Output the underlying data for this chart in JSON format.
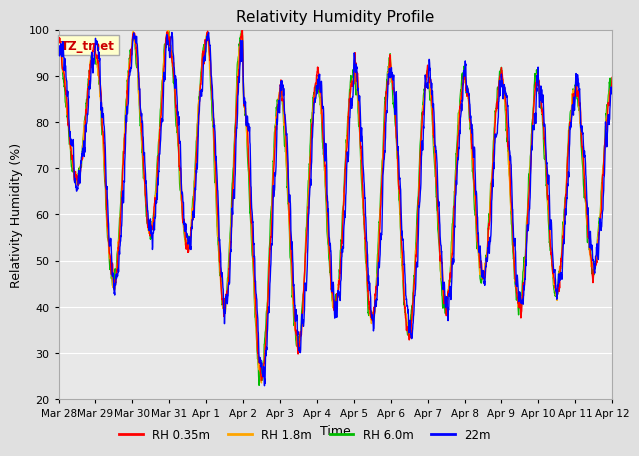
{
  "title": "Relativity Humidity Profile",
  "xlabel": "Time",
  "ylabel": "Relativity Humidity (%)",
  "ylim": [
    20,
    100
  ],
  "yticks": [
    20,
    30,
    40,
    50,
    60,
    70,
    80,
    90,
    100
  ],
  "colors": {
    "RH 0.35m": "#ff0000",
    "RH 1.8m": "#ffa500",
    "RH 6.0m": "#00bb00",
    "22m": "#0000ff"
  },
  "annotation_text": "TZ_tmet",
  "annotation_color": "#cc0000",
  "annotation_bg": "#ffffcc",
  "annotation_border": "#aaaaaa",
  "plot_bg": "#e8e8e8",
  "fig_bg": "#e0e0e0",
  "n_days": 15,
  "legend_entries": [
    "RH 0.35m",
    "RH 1.8m",
    "RH 6.0m",
    "22m"
  ],
  "xtick_labels": [
    "Mar 28",
    "Mar 29",
    "Mar 30",
    "Mar 31",
    "Apr 1",
    "Apr 2",
    "Apr 3",
    "Apr 4",
    "Apr 5",
    "Apr 6",
    "Apr 7",
    "Apr 8",
    "Apr 9",
    "Apr 10",
    "Apr 11",
    "Apr 12"
  ],
  "line_width": 1.0
}
